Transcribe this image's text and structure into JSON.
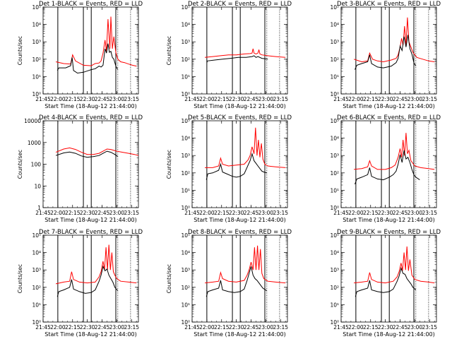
{
  "chart_data": {
    "type": "line",
    "layout": "3x3 grid of small multiples",
    "shared": {
      "x_tick_labels": [
        "21:45",
        "22:00",
        "22:15",
        "22:30",
        "22:45",
        "23:00",
        "23:15"
      ],
      "x_ticks_minutes": [
        -1,
        14,
        29,
        44,
        59,
        74,
        89
      ],
      "xlim_minutes": [
        -1,
        96
      ],
      "xlabel": "Start Time (18-Aug-12 21:44:00)",
      "ylabel": "Counts/sec",
      "y_scale": "log",
      "series_colors": {
        "events": "#000000",
        "lld": "#ff0000"
      },
      "grid": false,
      "vertical_marker_lines_minutes": {
        "solid": [
          14,
          40,
          48,
          73
        ],
        "dotted": [
          75,
          88
        ]
      }
    },
    "log_tick_labels": [
      {
        "exp": 0,
        "label": "10⁰"
      },
      {
        "exp": 1,
        "label": "10¹"
      },
      {
        "exp": 2,
        "label": "10²"
      },
      {
        "exp": 3,
        "label": "10³"
      },
      {
        "exp": 4,
        "label": "10⁴"
      },
      {
        "exp": 5,
        "label": "10⁵"
      }
    ],
    "plain_tick_labels": [
      {
        "exp": 0,
        "label": "1"
      },
      {
        "exp": 1,
        "label": "10"
      },
      {
        "exp": 2,
        "label": "100"
      },
      {
        "exp": 3,
        "label": "1000"
      },
      {
        "exp": 4,
        "label": "10000"
      }
    ],
    "panels": [
      {
        "title": "Det 1-BLACK = Events, RED = LLD",
        "y_exp_range": [
          0,
          5
        ],
        "y_ticks": "log",
        "show_ylabel": true,
        "lld": {
          "t": [
            12,
            20,
            27,
            29,
            32,
            40,
            48,
            52,
            56,
            58,
            60,
            62,
            63.5,
            65,
            67,
            68,
            69.5,
            71,
            73,
            75,
            78,
            82,
            86,
            90,
            94
          ],
          "log": [
            1.85,
            1.75,
            1.72,
            2.25,
            1.9,
            1.65,
            1.62,
            1.75,
            1.78,
            1.9,
            2.35,
            3.1,
            2.45,
            4.3,
            2.6,
            4.45,
            2.6,
            3.3,
            2.4,
            2.0,
            1.85,
            1.8,
            1.72,
            1.65,
            1.6
          ]
        },
        "events": {
          "t": [
            13.5,
            15,
            22,
            27,
            28.5,
            30,
            34,
            40,
            48,
            52,
            56,
            58,
            60,
            62,
            63.5,
            65,
            66.5,
            68,
            69.5,
            71,
            73,
            75
          ],
          "log": [
            1.35,
            1.5,
            1.5,
            1.62,
            2.1,
            1.35,
            1.2,
            1.25,
            1.4,
            1.45,
            1.6,
            1.55,
            1.65,
            2.6,
            2.35,
            2.9,
            2.4,
            2.45,
            2.1,
            2.0,
            1.6,
            1.4
          ]
        }
      },
      {
        "title": "Det 2-BLACK = Events, RED = LLD",
        "y_exp_range": [
          0,
          5
        ],
        "y_ticks": "log",
        "show_ylabel": true,
        "lld": {
          "t": [
            12,
            20,
            28,
            36,
            44,
            52,
            58,
            60,
            61,
            62,
            64,
            66,
            67,
            68,
            70,
            76,
            84,
            94
          ],
          "log": [
            2.1,
            2.15,
            2.2,
            2.25,
            2.25,
            2.3,
            2.32,
            2.35,
            2.6,
            2.35,
            2.3,
            2.35,
            2.55,
            2.3,
            2.25,
            2.2,
            2.15,
            2.1
          ]
        },
        "events": {
          "t": [
            14,
            14.5,
            22,
            30,
            38,
            46,
            54,
            60,
            62,
            64,
            66,
            70,
            76
          ],
          "log": [
            1.8,
            1.9,
            1.95,
            2.0,
            2.05,
            2.1,
            2.1,
            2.15,
            2.2,
            2.1,
            2.15,
            2.05,
            2.0
          ]
        }
      },
      {
        "title": "Det 3-BLACK = Events, RED = LLD",
        "y_exp_range": [
          0,
          5
        ],
        "y_ticks": "log",
        "show_ylabel": false,
        "lld": {
          "t": [
            12,
            20,
            26,
            28,
            31,
            36,
            42,
            50,
            55,
            57,
            59,
            60.5,
            62,
            63.5,
            65,
            66.5,
            68,
            70,
            72,
            76,
            82,
            88,
            94
          ],
          "log": [
            2.0,
            1.85,
            1.9,
            2.35,
            2.0,
            1.9,
            1.85,
            1.95,
            2.05,
            2.25,
            2.7,
            3.2,
            2.8,
            3.9,
            2.85,
            4.4,
            3.0,
            2.7,
            2.4,
            2.1,
            2.0,
            1.9,
            1.85
          ]
        },
        "events": {
          "t": [
            13,
            15,
            20,
            26,
            28,
            30,
            36,
            42,
            50,
            55,
            57,
            59,
            61,
            63,
            65,
            67,
            69,
            71,
            73,
            75
          ],
          "log": [
            1.4,
            1.65,
            1.75,
            1.85,
            2.25,
            1.75,
            1.55,
            1.5,
            1.6,
            1.8,
            2.05,
            2.75,
            2.5,
            3.3,
            2.7,
            3.4,
            2.6,
            2.3,
            1.8,
            1.6
          ]
        }
      },
      {
        "title": "Det 4-BLACK = Events, RED = LLD",
        "y_exp_range": [
          0,
          4
        ],
        "y_ticks": "plain",
        "show_ylabel": true,
        "lld": {
          "t": [
            12,
            20,
            26,
            32,
            38,
            44,
            50,
            56,
            60,
            64,
            68,
            74,
            80,
            86,
            92,
            96
          ],
          "log": [
            2.55,
            2.7,
            2.75,
            2.68,
            2.55,
            2.45,
            2.45,
            2.5,
            2.6,
            2.7,
            2.68,
            2.6,
            2.55,
            2.5,
            2.45,
            2.4
          ]
        },
        "events": {
          "t": [
            12,
            20,
            26,
            32,
            38,
            44,
            50,
            56,
            60,
            64,
            68,
            72,
            75
          ],
          "log": [
            2.4,
            2.52,
            2.56,
            2.5,
            2.38,
            2.32,
            2.35,
            2.4,
            2.5,
            2.6,
            2.55,
            2.45,
            2.35
          ]
        }
      },
      {
        "title": "Det 5-BLACK = Events, RED = LLD",
        "y_exp_range": [
          0,
          5
        ],
        "y_ticks": "log",
        "show_ylabel": true,
        "lld": {
          "t": [
            12,
            20,
            26,
            28,
            30,
            36,
            44,
            52,
            56,
            58,
            60,
            62,
            63.5,
            65,
            66.5,
            68,
            69.5,
            71,
            73,
            76,
            84,
            94
          ],
          "log": [
            2.3,
            2.3,
            2.4,
            2.85,
            2.5,
            2.4,
            2.45,
            2.5,
            2.75,
            3.0,
            3.5,
            3.1,
            4.6,
            3.0,
            3.9,
            2.9,
            3.7,
            2.8,
            2.5,
            2.4,
            2.35,
            2.3
          ]
        },
        "events": {
          "t": [
            13.5,
            15,
            20,
            26,
            28,
            30,
            34,
            40,
            44,
            48,
            52,
            56,
            58,
            60,
            62,
            64,
            66,
            68,
            70,
            72,
            75
          ],
          "log": [
            1.6,
            1.95,
            2.0,
            2.15,
            2.5,
            2.05,
            1.95,
            1.8,
            1.75,
            1.8,
            1.95,
            2.45,
            2.7,
            3.1,
            2.7,
            2.55,
            2.4,
            2.25,
            2.1,
            2.05,
            2.0
          ]
        }
      },
      {
        "title": "Det 6-BLACK = Events, RED = LLD",
        "y_exp_range": [
          0,
          5
        ],
        "y_ticks": "log",
        "show_ylabel": false,
        "lld": {
          "t": [
            12,
            20,
            26,
            28,
            30,
            36,
            44,
            50,
            54,
            57,
            59,
            60.5,
            62,
            63.5,
            65,
            66.5,
            68,
            70,
            74,
            80,
            88,
            94
          ],
          "log": [
            2.2,
            2.25,
            2.35,
            2.7,
            2.4,
            2.2,
            2.2,
            2.3,
            2.45,
            2.9,
            3.4,
            2.9,
            3.9,
            3.0,
            4.3,
            3.1,
            3.3,
            2.7,
            2.4,
            2.3,
            2.25,
            2.2
          ]
        },
        "events": {
          "t": [
            13,
            15,
            20,
            26,
            28,
            30,
            36,
            42,
            48,
            52,
            55,
            57,
            59,
            61,
            63,
            65,
            67,
            69,
            71,
            73,
            75,
            79
          ],
          "log": [
            1.35,
            1.65,
            1.75,
            1.9,
            2.3,
            1.8,
            1.65,
            1.6,
            1.75,
            1.9,
            2.1,
            2.5,
            3.05,
            2.6,
            3.3,
            2.8,
            2.9,
            2.6,
            2.2,
            1.9,
            1.75,
            1.6
          ]
        }
      },
      {
        "title": "Det 7-BLACK = Events, RED = LLD",
        "y_exp_range": [
          0,
          5
        ],
        "y_ticks": "log",
        "show_ylabel": true,
        "lld": {
          "t": [
            12,
            20,
            26,
            28,
            30,
            36,
            44,
            52,
            56,
            58,
            60,
            61.5,
            63,
            64.5,
            66,
            67.5,
            69,
            70.5,
            72,
            74,
            78,
            86,
            94
          ],
          "log": [
            2.2,
            2.3,
            2.35,
            2.9,
            2.45,
            2.3,
            2.25,
            2.3,
            2.6,
            2.9,
            3.5,
            3.0,
            4.3,
            3.0,
            4.45,
            3.0,
            4.0,
            2.9,
            2.7,
            2.5,
            2.35,
            2.3,
            2.25
          ]
        },
        "events": {
          "t": [
            13.5,
            15,
            20,
            26,
            28,
            30,
            36,
            42,
            48,
            52,
            56,
            58,
            60,
            62,
            64,
            66,
            68,
            70,
            72,
            75
          ],
          "log": [
            1.45,
            1.75,
            1.85,
            2.0,
            2.45,
            1.9,
            1.75,
            1.65,
            1.7,
            1.85,
            2.35,
            2.7,
            3.2,
            2.95,
            3.05,
            2.7,
            2.5,
            2.3,
            2.0,
            1.8
          ]
        }
      },
      {
        "title": "Det 8-BLACK = Events, RED = LLD",
        "y_exp_range": [
          0,
          5
        ],
        "y_ticks": "log",
        "show_ylabel": true,
        "lld": {
          "t": [
            12,
            20,
            26,
            28,
            30,
            36,
            44,
            52,
            55,
            57,
            59,
            61,
            62.5,
            64,
            65.5,
            67,
            68.5,
            70,
            72,
            76,
            84,
            94
          ],
          "log": [
            2.25,
            2.3,
            2.35,
            2.85,
            2.5,
            2.35,
            2.3,
            2.4,
            2.7,
            3.0,
            3.45,
            3.0,
            4.3,
            3.0,
            4.4,
            3.0,
            4.2,
            2.8,
            2.5,
            2.35,
            2.3,
            2.25
          ]
        },
        "events": {
          "t": [
            13.5,
            15,
            20,
            26,
            28,
            30,
            36,
            42,
            48,
            52,
            55,
            57,
            59,
            61,
            63,
            65,
            67,
            69,
            71,
            75
          ],
          "log": [
            1.45,
            1.75,
            1.85,
            1.95,
            2.4,
            1.85,
            1.75,
            1.7,
            1.75,
            1.9,
            2.4,
            2.8,
            3.2,
            2.7,
            2.5,
            2.4,
            2.25,
            2.1,
            1.95,
            1.8
          ]
        }
      },
      {
        "title": "Det 9-BLACK = Events, RED = LLD",
        "y_exp_range": [
          0,
          5
        ],
        "y_ticks": "log",
        "show_ylabel": false,
        "lld": {
          "t": [
            12,
            20,
            26,
            28,
            30,
            36,
            44,
            52,
            56,
            58,
            60,
            61.5,
            63,
            64.5,
            66,
            67.5,
            69,
            71,
            74,
            80,
            88,
            94
          ],
          "log": [
            2.25,
            2.3,
            2.35,
            2.85,
            2.45,
            2.3,
            2.25,
            2.35,
            2.6,
            2.9,
            3.4,
            2.95,
            4.0,
            3.0,
            4.35,
            2.95,
            3.6,
            2.7,
            2.45,
            2.35,
            2.3,
            2.25
          ]
        },
        "events": {
          "t": [
            13.5,
            15,
            20,
            26,
            28,
            30,
            36,
            42,
            48,
            52,
            56,
            58,
            60,
            62,
            64,
            66,
            68,
            70,
            72,
            75
          ],
          "log": [
            1.45,
            1.75,
            1.85,
            1.95,
            2.4,
            1.85,
            1.75,
            1.7,
            1.75,
            1.9,
            2.35,
            2.65,
            3.1,
            2.8,
            2.75,
            2.5,
            2.35,
            2.2,
            2.0,
            1.85
          ]
        }
      }
    ]
  }
}
